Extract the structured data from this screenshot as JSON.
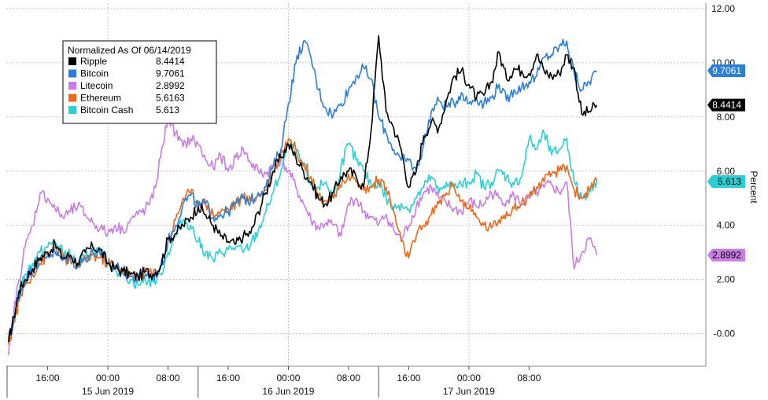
{
  "chart_data": {
    "type": "line",
    "ylabel": "Percent",
    "ylim": [
      -1.2,
      12.2
    ],
    "y_ticks": [
      "-0.00",
      "2.00",
      "4.00",
      "6.00",
      "8.00",
      "10.00",
      "12.00"
    ],
    "y_tick_values": [
      0,
      2,
      4,
      6,
      8,
      10,
      12
    ],
    "x_range_hours": [
      -9.5,
      83.5
    ],
    "x_time_ticks": [
      {
        "label": "16:00",
        "hour": -4
      },
      {
        "label": "00:00",
        "hour": 4
      },
      {
        "label": "08:00",
        "hour": 12
      },
      {
        "label": "16:00",
        "hour": 20
      },
      {
        "label": "00:00",
        "hour": 28
      },
      {
        "label": "08:00",
        "hour": 36
      },
      {
        "label": "16:00",
        "hour": 44
      },
      {
        "label": "00:00",
        "hour": 52
      },
      {
        "label": "08:00",
        "hour": 60
      }
    ],
    "x_day_labels": [
      {
        "label": "15 Jun 2019",
        "hour": 4
      },
      {
        "label": "16 Jun 2019",
        "hour": 28
      },
      {
        "label": "17 Jun 2019",
        "hour": 52
      }
    ],
    "x_day_separators": [
      16,
      40
    ],
    "x_vgrid_hours": [
      4,
      28,
      52
    ],
    "legend_title": "Normalized As Of 06/14/2019",
    "legend_position": "top-left",
    "series": [
      {
        "name": "Ripple",
        "last": "8.4414",
        "color": "#000000",
        "x": [
          -9.2,
          -8.5,
          -7.8,
          -7,
          -6,
          -5,
          -4,
          -3,
          -2,
          -1,
          0,
          1,
          2,
          3,
          4,
          5,
          6,
          7,
          8,
          9,
          10,
          11,
          12,
          13,
          14,
          15,
          16,
          17,
          18,
          19,
          20,
          21,
          22,
          23,
          24,
          25,
          26,
          27,
          28,
          29,
          30,
          31,
          32,
          33,
          34,
          35,
          36,
          37,
          38,
          39,
          40,
          41,
          42,
          43,
          44,
          45,
          46,
          47,
          48,
          49,
          50,
          51,
          52,
          53,
          54,
          55,
          56,
          57,
          58,
          59,
          60,
          61,
          62,
          63,
          64,
          65,
          66,
          67,
          68,
          69
        ],
        "y": [
          -0.3,
          0.6,
          1.6,
          2.0,
          2.4,
          2.8,
          3.0,
          3.3,
          2.8,
          2.9,
          2.6,
          3.0,
          3.2,
          3.1,
          2.6,
          2.4,
          2.3,
          2.2,
          2.1,
          2.3,
          2.2,
          2.5,
          3.5,
          3.7,
          4.0,
          4.3,
          4.7,
          4.4,
          4.0,
          3.6,
          3.4,
          3.3,
          3.6,
          3.7,
          4.5,
          5.2,
          6.0,
          6.5,
          7.0,
          6.5,
          6.0,
          5.6,
          5.0,
          4.8,
          5.2,
          5.8,
          6.0,
          5.8,
          5.4,
          7.5,
          11.0,
          8.2,
          7.6,
          6.8,
          5.4,
          6.0,
          7.3,
          7.8,
          7.6,
          8.6,
          9.5,
          9.7,
          9.2,
          8.7,
          8.8,
          9.3,
          10.4,
          9.4,
          9.8,
          9.7,
          9.6,
          10.3,
          9.7,
          9.5,
          9.6,
          10.3,
          9.8,
          8.1,
          8.2,
          8.4414
        ]
      },
      {
        "name": "Bitcoin",
        "last": "9.7061",
        "color": "#2b7fd6",
        "x": [
          -9.2,
          -8.5,
          -7.8,
          -7,
          -6,
          -5,
          -4,
          -3,
          -2,
          -1,
          0,
          1,
          2,
          3,
          4,
          5,
          6,
          7,
          8,
          9,
          10,
          11,
          12,
          13,
          14,
          15,
          16,
          17,
          18,
          19,
          20,
          21,
          22,
          23,
          24,
          25,
          26,
          27,
          28,
          29,
          30,
          31,
          32,
          33,
          34,
          35,
          36,
          37,
          38,
          39,
          40,
          41,
          42,
          43,
          44,
          45,
          46,
          47,
          48,
          49,
          50,
          51,
          52,
          53,
          54,
          55,
          56,
          57,
          58,
          59,
          60,
          61,
          62,
          63,
          64,
          65,
          66,
          67,
          68,
          69
        ],
        "y": [
          -0.2,
          0.5,
          1.4,
          2.0,
          2.4,
          2.7,
          2.9,
          3.0,
          2.7,
          2.8,
          2.5,
          2.8,
          3.0,
          2.9,
          2.6,
          2.5,
          2.3,
          2.1,
          2.0,
          2.2,
          2.1,
          2.4,
          3.4,
          4.0,
          4.8,
          5.1,
          4.7,
          4.8,
          4.3,
          4.4,
          4.5,
          4.8,
          5.0,
          4.9,
          5.2,
          5.4,
          6.2,
          6.8,
          8.5,
          10.0,
          10.8,
          10.2,
          9.0,
          8.3,
          8.1,
          8.5,
          9.0,
          9.5,
          9.8,
          9.4,
          8.0,
          7.4,
          6.8,
          6.4,
          6.4,
          6.0,
          7.0,
          8.2,
          8.6,
          8.4,
          8.5,
          8.9,
          8.5,
          8.7,
          8.5,
          8.7,
          9.2,
          8.6,
          9.0,
          9.1,
          9.3,
          9.5,
          10.2,
          10.3,
          10.6,
          10.8,
          9.6,
          9.0,
          9.3,
          9.7061
        ]
      },
      {
        "name": "Litecoin",
        "last": "2.8992",
        "color": "#c97de6",
        "x": [
          -9.2,
          -8.5,
          -7.8,
          -7,
          -6,
          -5,
          -4,
          -3,
          -2,
          -1,
          0,
          1,
          2,
          3,
          4,
          5,
          6,
          7,
          8,
          9,
          10,
          11,
          12,
          13,
          14,
          15,
          16,
          17,
          18,
          19,
          20,
          21,
          22,
          23,
          24,
          25,
          26,
          27,
          28,
          29,
          30,
          31,
          32,
          33,
          34,
          35,
          36,
          37,
          38,
          39,
          40,
          41,
          42,
          43,
          44,
          45,
          46,
          47,
          48,
          49,
          50,
          51,
          52,
          53,
          54,
          55,
          56,
          57,
          58,
          59,
          60,
          61,
          62,
          63,
          64,
          65,
          66,
          67,
          68,
          69
        ],
        "y": [
          -0.8,
          0.8,
          2.0,
          3.2,
          4.0,
          5.2,
          5.0,
          4.6,
          4.3,
          4.5,
          4.7,
          4.4,
          4.1,
          3.9,
          3.7,
          4.0,
          3.8,
          4.2,
          4.4,
          4.6,
          5.0,
          6.5,
          8.0,
          7.4,
          6.9,
          7.2,
          7.0,
          6.4,
          6.1,
          6.6,
          6.0,
          6.5,
          6.8,
          6.3,
          6.0,
          5.9,
          6.2,
          6.4,
          6.0,
          5.4,
          4.8,
          4.2,
          3.9,
          4.1,
          4.0,
          3.6,
          4.8,
          5.0,
          4.5,
          4.3,
          4.0,
          4.4,
          3.8,
          3.5,
          4.0,
          4.7,
          5.2,
          5.4,
          5.0,
          4.8,
          4.6,
          4.5,
          4.9,
          4.7,
          4.8,
          5.2,
          5.0,
          4.9,
          5.1,
          4.8,
          5.0,
          5.2,
          5.4,
          5.5,
          5.2,
          5.6,
          2.4,
          3.0,
          3.5,
          2.8992
        ]
      },
      {
        "name": "Ethereum",
        "last": "5.6163",
        "color": "#ea6a1d",
        "x": [
          -9.2,
          -8.5,
          -7.8,
          -7,
          -6,
          -5,
          -4,
          -3,
          -2,
          -1,
          0,
          1,
          2,
          3,
          4,
          5,
          6,
          7,
          8,
          9,
          10,
          11,
          12,
          13,
          14,
          15,
          16,
          17,
          18,
          19,
          20,
          21,
          22,
          23,
          24,
          25,
          26,
          27,
          28,
          29,
          30,
          31,
          32,
          33,
          34,
          35,
          36,
          37,
          38,
          39,
          40,
          41,
          42,
          43,
          44,
          45,
          46,
          47,
          48,
          49,
          50,
          51,
          52,
          53,
          54,
          55,
          56,
          57,
          58,
          59,
          60,
          61,
          62,
          63,
          64,
          65,
          66,
          67,
          68,
          69
        ],
        "y": [
          -0.4,
          0.4,
          1.2,
          1.8,
          2.2,
          2.6,
          2.9,
          3.2,
          2.8,
          2.7,
          2.5,
          2.7,
          2.9,
          2.8,
          2.6,
          2.5,
          2.3,
          2.2,
          2.0,
          2.3,
          2.2,
          2.5,
          3.4,
          4.2,
          5.0,
          5.2,
          4.9,
          4.8,
          4.4,
          4.5,
          4.6,
          4.8,
          5.0,
          4.9,
          5.1,
          5.3,
          6.0,
          6.6,
          7.2,
          6.8,
          6.3,
          5.8,
          5.1,
          4.9,
          5.0,
          5.4,
          5.9,
          5.6,
          5.3,
          5.4,
          5.7,
          5.4,
          4.5,
          3.4,
          2.8,
          3.6,
          4.0,
          4.4,
          4.8,
          5.2,
          5.5,
          4.9,
          4.6,
          4.3,
          4.0,
          3.9,
          4.2,
          4.5,
          4.6,
          4.8,
          5.1,
          5.4,
          5.6,
          5.9,
          6.0,
          6.2,
          5.3,
          5.0,
          5.3,
          5.6163
        ]
      },
      {
        "name": "Bitcoin Cash",
        "last": "5.613",
        "color": "#2ad0d4",
        "x": [
          -9.2,
          -8.5,
          -7.8,
          -7,
          -6,
          -5,
          -4,
          -3,
          -2,
          -1,
          0,
          1,
          2,
          3,
          4,
          5,
          6,
          7,
          8,
          9,
          10,
          11,
          12,
          13,
          14,
          15,
          16,
          17,
          18,
          19,
          20,
          21,
          22,
          23,
          24,
          25,
          26,
          27,
          28,
          29,
          30,
          31,
          32,
          33,
          34,
          35,
          36,
          37,
          38,
          39,
          40,
          41,
          42,
          43,
          44,
          45,
          46,
          47,
          48,
          49,
          50,
          51,
          52,
          53,
          54,
          55,
          56,
          57,
          58,
          59,
          60,
          61,
          62,
          63,
          64,
          65,
          66,
          67,
          68,
          69
        ],
        "y": [
          -0.3,
          0.5,
          1.5,
          2.2,
          2.6,
          3.0,
          3.2,
          3.4,
          3.0,
          2.9,
          2.6,
          2.8,
          3.1,
          3.0,
          2.6,
          2.4,
          2.2,
          2.0,
          1.8,
          2.0,
          1.9,
          2.2,
          3.0,
          3.6,
          4.2,
          4.0,
          3.4,
          3.0,
          2.7,
          3.0,
          3.1,
          3.2,
          3.0,
          3.3,
          3.8,
          4.5,
          5.2,
          6.0,
          7.0,
          6.7,
          6.2,
          5.5,
          5.4,
          5.6,
          5.0,
          6.2,
          7.0,
          6.4,
          6.0,
          5.5,
          5.6,
          5.0,
          4.6,
          4.8,
          4.6,
          5.0,
          5.4,
          5.8,
          5.2,
          5.6,
          5.4,
          5.5,
          5.6,
          5.9,
          5.4,
          5.6,
          6.0,
          5.8,
          5.5,
          5.8,
          7.2,
          6.8,
          7.4,
          6.6,
          6.8,
          7.2,
          5.6,
          5.0,
          5.3,
          5.613
        ]
      }
    ]
  }
}
